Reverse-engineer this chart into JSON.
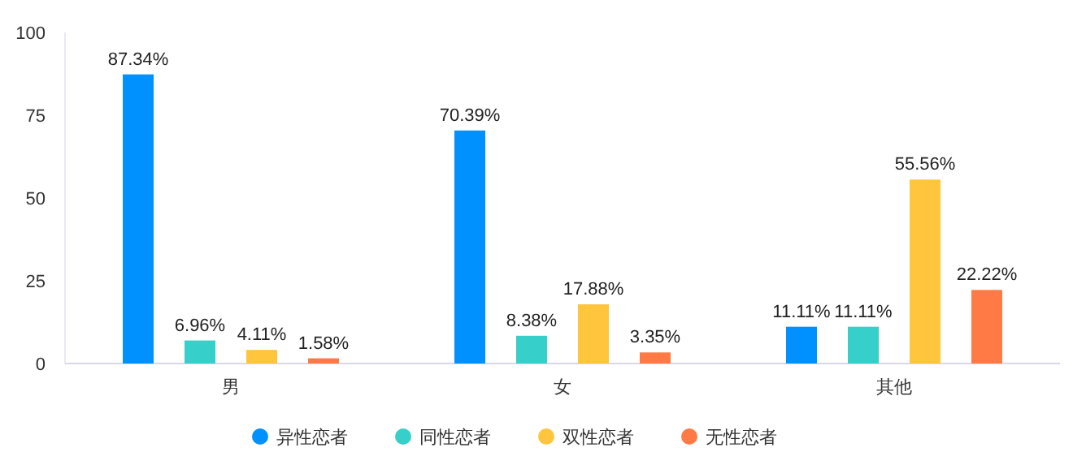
{
  "chart_data": {
    "type": "bar",
    "categories": [
      "男",
      "女",
      "其他"
    ],
    "ylim": [
      0,
      100
    ],
    "yticks": [
      0,
      25,
      50,
      75,
      100
    ],
    "grid": false,
    "legend": "bottom",
    "series": [
      {
        "name": "异性恋者",
        "color": "#0091ff",
        "values": [
          87.34,
          70.39,
          11.11
        ],
        "value_labels": [
          "87.34%",
          "70.39%",
          "11.11%"
        ]
      },
      {
        "name": "同性恋者",
        "color": "#36cfc9",
        "values": [
          6.96,
          8.38,
          11.11
        ],
        "value_labels": [
          "6.96%",
          "8.38%",
          "11.11%"
        ]
      },
      {
        "name": "双性恋者",
        "color": "#ffc53d",
        "values": [
          4.11,
          17.88,
          55.56
        ],
        "value_labels": [
          "4.11%",
          "17.88%",
          "55.56%"
        ]
      },
      {
        "name": "无性恋者",
        "color": "#ff7a45",
        "values": [
          1.58,
          3.35,
          22.22
        ],
        "value_labels": [
          "1.58%",
          "3.35%",
          "22.22%"
        ]
      }
    ]
  }
}
